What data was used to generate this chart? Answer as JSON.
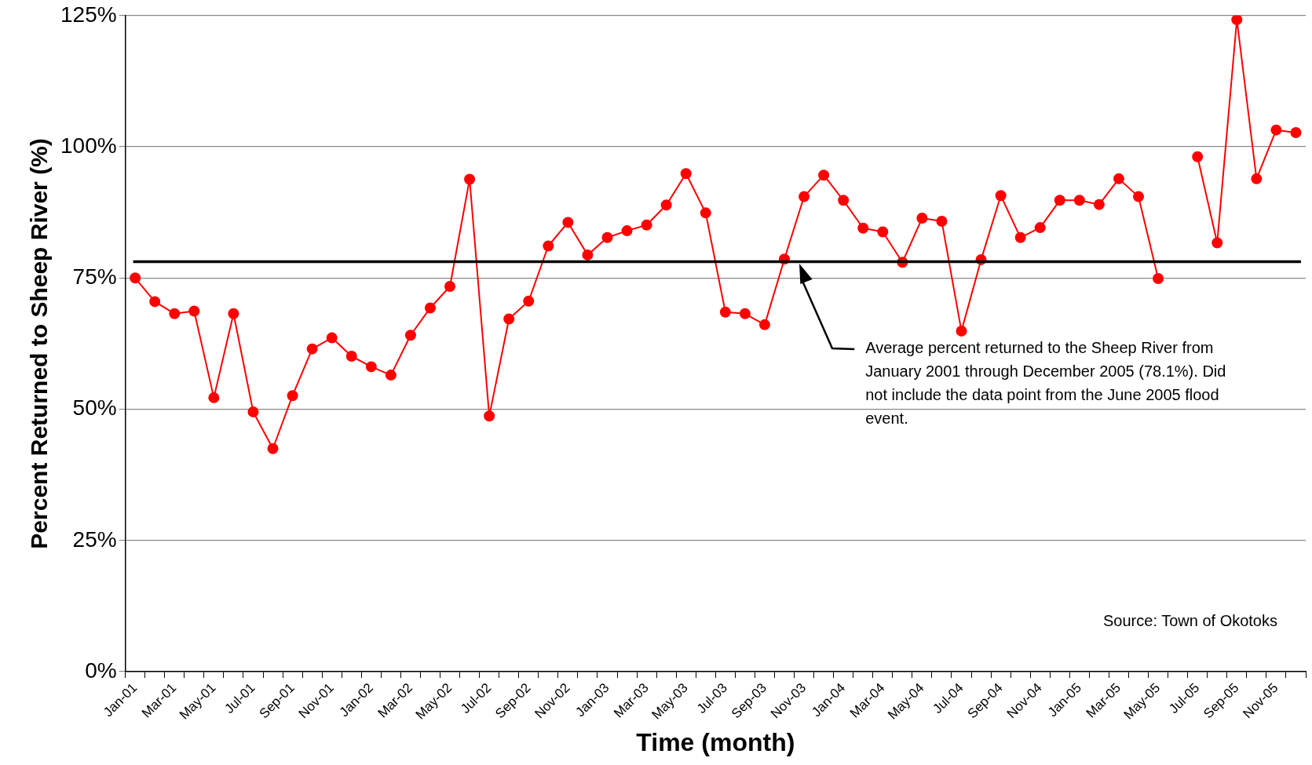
{
  "chart_data": {
    "type": "line",
    "xlabel": "Time (month)",
    "ylabel": "Percent Returned to Sheep River (%)",
    "categories": [
      "Jan-01",
      null,
      "Mar-01",
      null,
      "May-01",
      null,
      "Jul-01",
      null,
      "Sep-01",
      null,
      "Nov-01",
      null,
      "Jan-02",
      null,
      "Mar-02",
      null,
      "May-02",
      null,
      "Jul-02",
      null,
      "Sep-02",
      null,
      "Nov-02",
      null,
      "Jan-03",
      null,
      "Mar-03",
      null,
      "May-03",
      null,
      "Jul-03",
      null,
      "Sep-03",
      null,
      "Nov-03",
      null,
      "Jan-04",
      null,
      "Mar-04",
      null,
      "May-04",
      null,
      "Jul-04",
      null,
      "Sep-04",
      null,
      "Nov-04",
      null,
      "Jan-05",
      null,
      "Mar-05",
      null,
      "May-05",
      null,
      "Jul-05",
      null,
      "Sep-05",
      null,
      "Nov-05",
      null
    ],
    "series": [
      {
        "color": "#ff0000",
        "values": [
          75,
          70.5,
          68.2,
          68.7,
          52.2,
          68.2,
          49.5,
          42.5,
          52.6,
          61.5,
          63.6,
          60.1,
          58.1,
          56.5,
          64.1,
          69.3,
          73.4,
          93.8,
          48.7,
          67.2,
          70.6,
          81.1,
          85.6,
          79.4,
          82.7,
          84.0,
          85.1,
          88.9,
          94.9,
          87.4,
          68.5,
          68.2,
          66.1,
          78.6,
          90.5,
          94.6,
          89.8,
          84.5,
          83.8,
          78.0,
          86.4,
          85.8,
          64.9,
          78.5,
          90.7,
          82.7,
          84.6,
          89.8,
          89.8,
          89.0,
          93.9,
          90.5,
          74.9,
          null,
          98.1,
          81.7,
          124.2,
          93.9,
          103.2,
          102.7
        ]
      }
    ],
    "ylim": [
      0,
      125
    ],
    "yticks": [
      {
        "value": 0,
        "label": "0%"
      },
      {
        "value": 25,
        "label": "25%"
      },
      {
        "value": 50,
        "label": "50%"
      },
      {
        "value": 75,
        "label": "75%"
      },
      {
        "value": 100,
        "label": "100%"
      },
      {
        "value": 125,
        "label": "125%"
      }
    ],
    "grid": "y",
    "marker": "circle",
    "line_style": "solid",
    "ref_lines": [
      {
        "axis": "y",
        "value": 78.1,
        "color": "#000000"
      }
    ],
    "annotations": [
      "Average percent returned to the Sheep River from January 2001 through December 2005 (78.1%). Did not include the data point from the June 2005 flood event.",
      "Source: Town of Okotoks"
    ]
  }
}
